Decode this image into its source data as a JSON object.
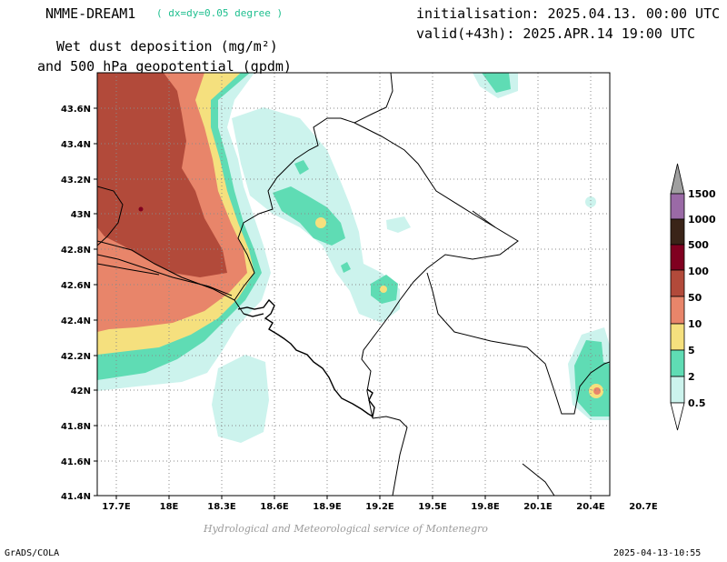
{
  "header": {
    "model": "NMME-DREAM1",
    "resolution": "( dx=dy=0.05 degree )",
    "init": "initialisation: 2025.04.13. 00:00 UTC",
    "valid": "valid(+43h): 2025.APR.14 19:00 UTC",
    "variable_line1": "Wet dust deposition (mg/m²)",
    "variable_line2": "and 500 hPa geopotential (gpdm)"
  },
  "map": {
    "lon_ticks": [
      "17.7E",
      "18E",
      "18.3E",
      "18.6E",
      "18.9E",
      "19.2E",
      "19.5E",
      "19.8E",
      "20.1E",
      "20.4E",
      "20.7E"
    ],
    "lat_ticks": [
      "43.6N",
      "43.4N",
      "43.2N",
      "43N",
      "42.8N",
      "42.6N",
      "42.4N",
      "42.2N",
      "42N",
      "41.8N",
      "41.6N",
      "41.4N"
    ]
  },
  "legend": {
    "levels": [
      "1500",
      "1000",
      "500",
      "100",
      "50",
      "10",
      "5",
      "2",
      "0.5"
    ],
    "colors": [
      "#9a6aa6",
      "#3a2418",
      "#800020",
      "#b24a3a",
      "#e8856a",
      "#f5e07e",
      "#5fdcb4",
      "#ccf3ed"
    ]
  },
  "credit": "Hydrological and Meteorological service of Montenegro",
  "footer": {
    "left": "GrADS/COLA",
    "right": "2025-04-13-10:55"
  }
}
